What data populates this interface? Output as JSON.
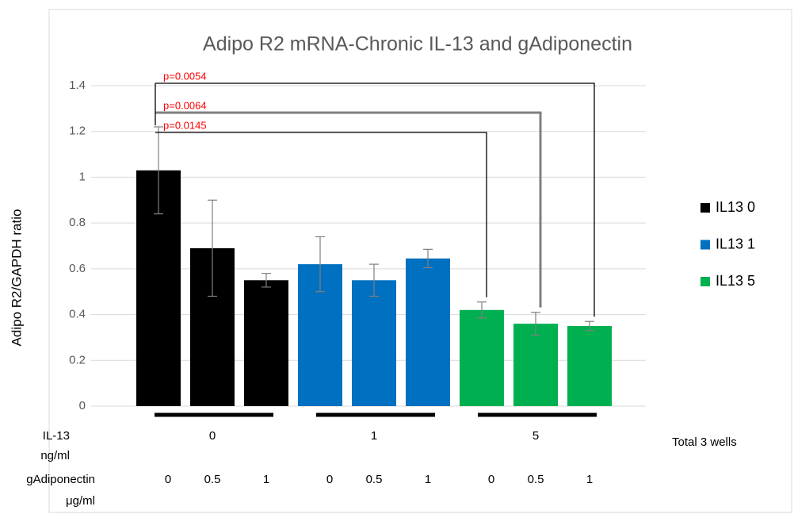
{
  "chart_data": {
    "type": "bar",
    "title": "Adipo R2 mRNA-Chronic IL-13 and gAdiponectin",
    "y_label": "Adipo R2/GAPDH ratio",
    "categories": [
      "0",
      "0.5",
      "1"
    ],
    "groups": [
      "0",
      "1",
      "5"
    ],
    "row_labels": [
      {
        "name": "IL-13",
        "unit": "ng/ml"
      },
      {
        "name": "gAdiponectin",
        "unit": "μg/ml"
      }
    ],
    "series": [
      {
        "name": "IL13 0",
        "color": "#000000",
        "values": [
          1.03,
          0.69,
          0.55
        ],
        "errors": [
          0.19,
          0.21,
          0.03
        ]
      },
      {
        "name": "IL13 1",
        "color": "#0070c0",
        "values": [
          0.62,
          0.55,
          0.645
        ],
        "errors": [
          0.12,
          0.07,
          0.04
        ]
      },
      {
        "name": "IL13 5",
        "color": "#00b050",
        "values": [
          0.42,
          0.36,
          0.35
        ],
        "errors": [
          0.035,
          0.05,
          0.02
        ]
      }
    ],
    "annotations": [
      "p=0.0054",
      "p=0.0064",
      "p=0.0145"
    ],
    "note": "Total 3 wells",
    "ylim": [
      0,
      1.4
    ],
    "yticks": [
      0,
      0.2,
      0.4,
      0.6,
      0.8,
      1,
      1.2,
      1.4
    ],
    "grid": true,
    "legend": "right"
  }
}
